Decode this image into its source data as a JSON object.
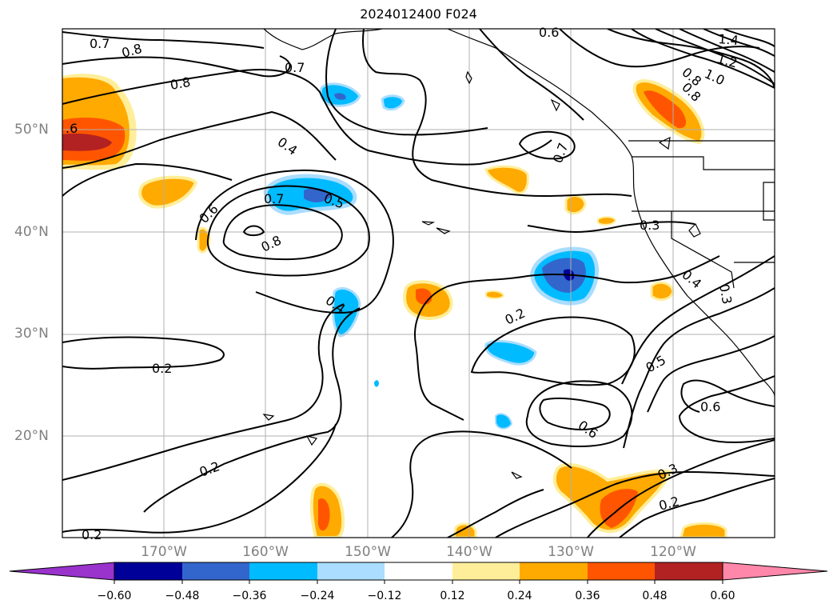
{
  "title": "2024012400 F024",
  "lat_labels": [
    "50°N",
    "40°N",
    "30°N",
    "20°N"
  ],
  "lon_labels": [
    "170°W",
    "160°W",
    "150°W",
    "140°W",
    "130°W",
    "120°W"
  ],
  "contour_labels": [
    "0.7",
    "0.8",
    "0.8",
    "0.7",
    "0.6",
    "1.4",
    "1.2",
    "1.0",
    "0.8",
    "0.8",
    "0.7",
    ".6",
    "0.4",
    "0.7",
    "0.5",
    "0.6",
    "0.8",
    "0.3",
    "0.4",
    "0.3",
    "0.4",
    "0.2",
    "0.2",
    "0.5",
    "0.6",
    "0.6",
    "0.2",
    "0.3",
    "0.2",
    "0.2"
  ],
  "colorbar": {
    "ticks": [
      "−0.60",
      "−0.48",
      "−0.36",
      "−0.24",
      "−0.12",
      "0.12",
      "0.24",
      "0.36",
      "0.48",
      "0.60"
    ],
    "colors": [
      "#9933cc",
      "#000099",
      "#3366cc",
      "#00bbff",
      "#aaddff",
      "#ffffff",
      "#ffee99",
      "#ffaa00",
      "#ff5500",
      "#b22222",
      "#ff88aa"
    ]
  }
}
